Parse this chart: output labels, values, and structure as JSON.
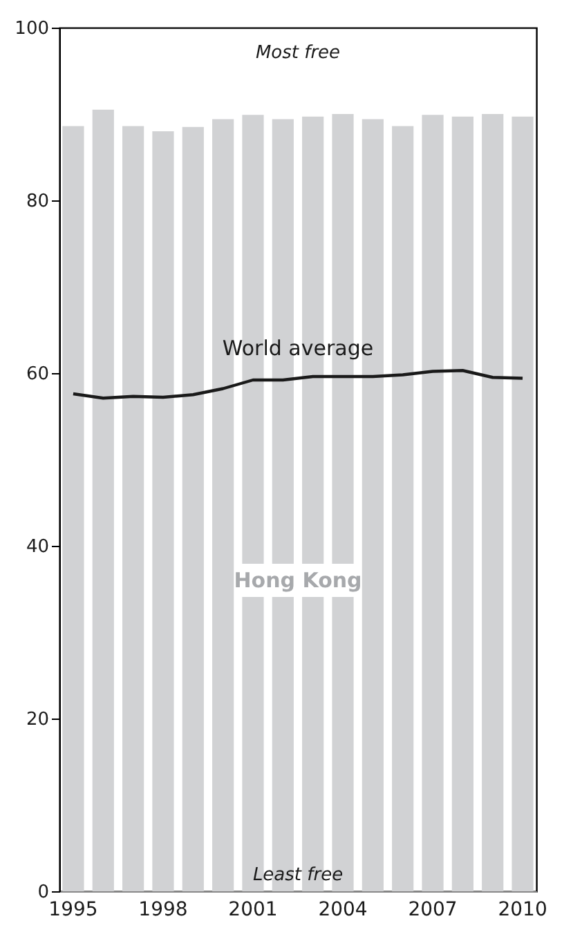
{
  "chart_data": {
    "type": "bar",
    "categories": [
      "1995",
      null,
      null,
      "1998",
      null,
      null,
      "2001",
      null,
      null,
      "2004",
      null,
      null,
      "2007",
      null,
      null,
      "2010"
    ],
    "series": [
      {
        "name": "Hong Kong",
        "color": "#d1d2d4",
        "values": [
          88.6,
          90.5,
          88.6,
          88.0,
          88.5,
          89.4,
          89.9,
          89.4,
          89.7,
          90.0,
          89.4,
          88.6,
          89.9,
          89.7,
          90.0,
          89.7
        ]
      },
      {
        "name": "World average",
        "type": "line",
        "color": "#1a1a1a",
        "values": [
          57.6,
          57.1,
          57.3,
          57.2,
          57.5,
          58.2,
          59.2,
          59.2,
          59.6,
          59.6,
          59.6,
          59.8,
          60.2,
          60.3,
          59.5,
          59.4
        ]
      }
    ],
    "ylim": [
      0,
      100
    ],
    "yticks": [
      0,
      20,
      40,
      60,
      80,
      100
    ],
    "grid": false,
    "legend": false,
    "annotations": [
      "Most free",
      "Least free"
    ]
  }
}
